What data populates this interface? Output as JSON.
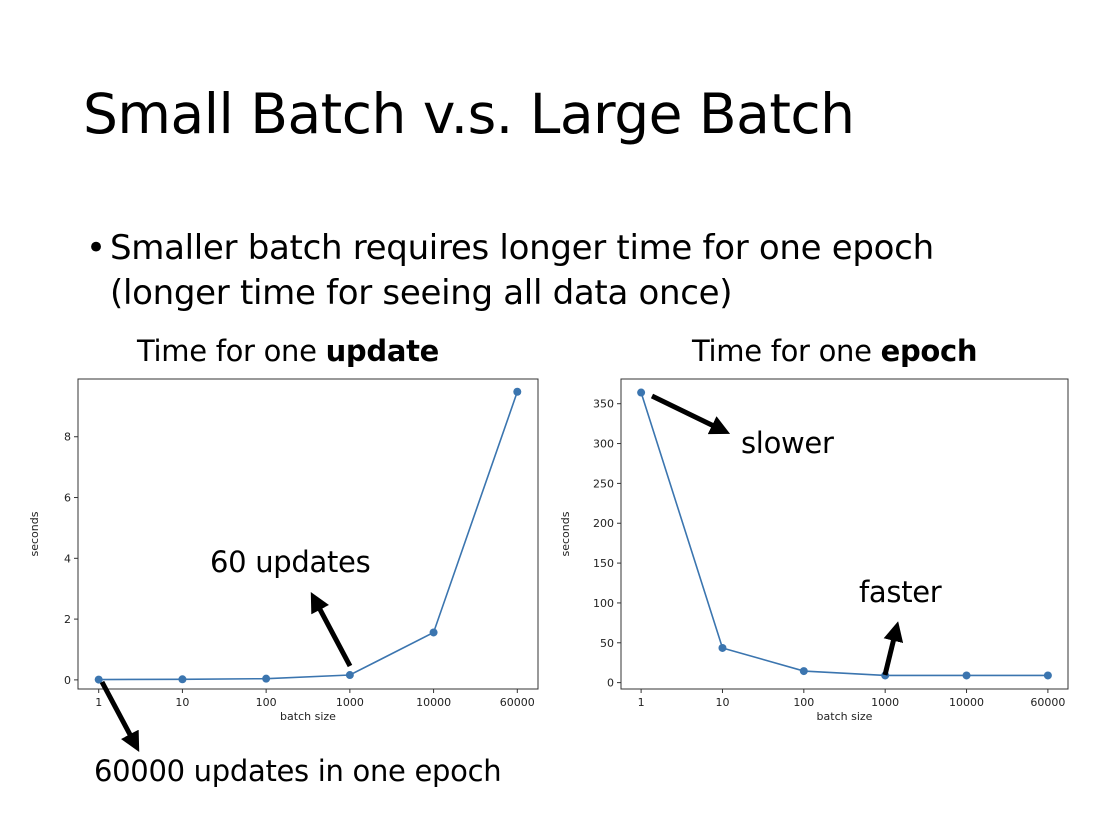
{
  "slide": {
    "title": "Small Batch v.s. Large Batch",
    "bullet_symbol": "•",
    "bullet": "Smaller batch requires longer time for one epoch (longer time for seeing all data once)"
  },
  "chart_data": [
    {
      "type": "line",
      "title_prefix": "Time for one ",
      "title_bold": "update",
      "categories": [
        "1",
        "10",
        "100",
        "1000",
        "10000",
        "60000"
      ],
      "values": [
        0.01,
        0.02,
        0.04,
        0.16,
        1.56,
        9.48
      ],
      "xlabel": "batch size",
      "ylabel": "seconds",
      "ylim": [
        -0.3,
        9.9
      ],
      "yticks": [
        0,
        2,
        4,
        6,
        8
      ],
      "grid": false,
      "color": "#3b75af",
      "annotations": [
        {
          "text": "60 updates"
        },
        {
          "text": "60000 updates in one epoch"
        }
      ]
    },
    {
      "type": "line",
      "title_prefix": "Time for one ",
      "title_bold": "epoch",
      "categories": [
        "1",
        "10",
        "100",
        "1000",
        "10000",
        "60000"
      ],
      "values": [
        364,
        43.5,
        14.5,
        9,
        9,
        9
      ],
      "xlabel": "batch size",
      "ylabel": "seconds",
      "ylim": [
        -8,
        381
      ],
      "yticks": [
        0,
        50,
        100,
        150,
        200,
        250,
        300,
        350
      ],
      "grid": false,
      "color": "#3b75af",
      "annotations": [
        {
          "text": "slower"
        },
        {
          "text": "faster"
        }
      ]
    }
  ]
}
